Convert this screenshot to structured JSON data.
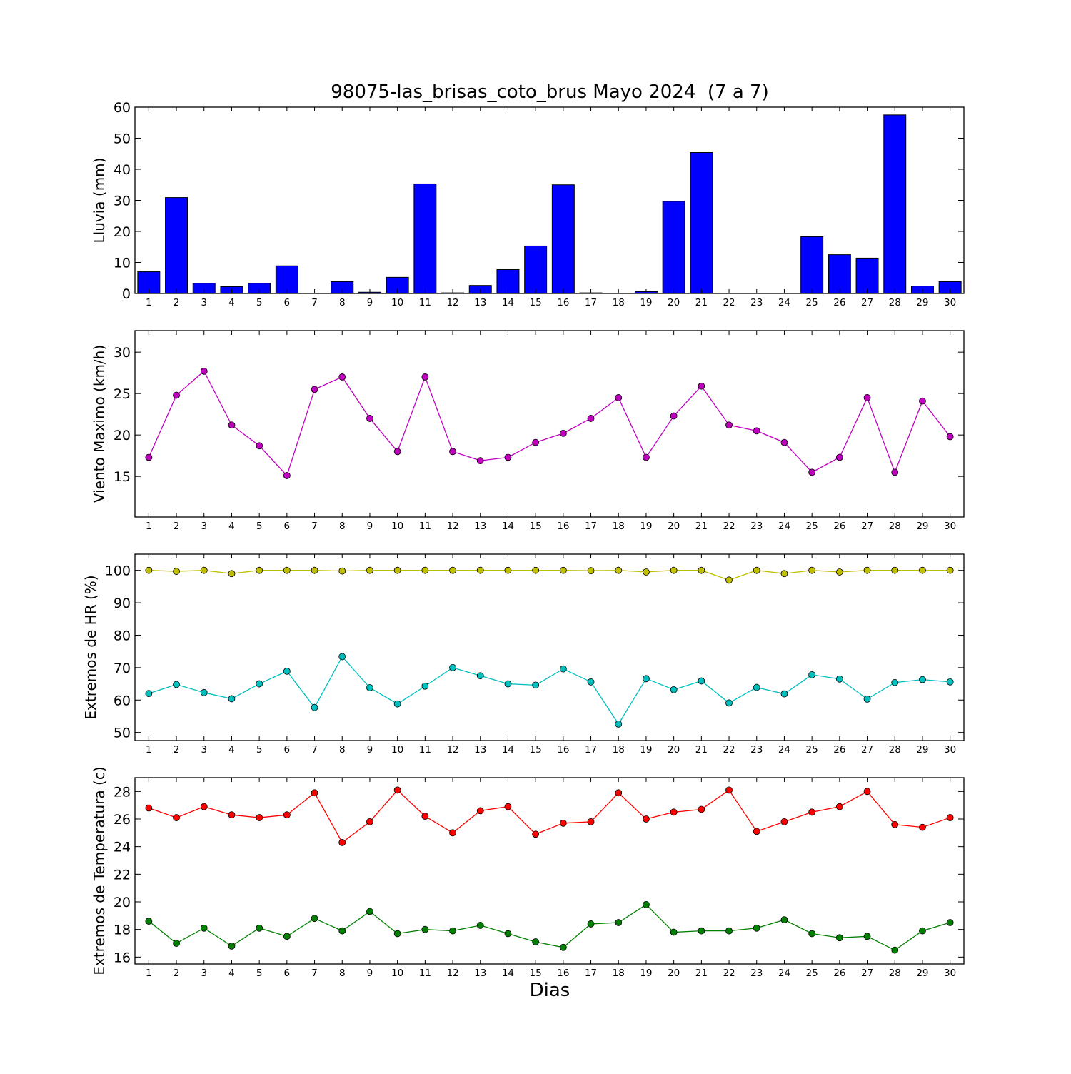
{
  "chart_data": {
    "title": "98075-las_brisas_coto_brus Mayo 2024  (7 a 7)",
    "xlabel": "Dias",
    "x": [
      1,
      2,
      3,
      4,
      5,
      6,
      7,
      8,
      9,
      10,
      11,
      12,
      13,
      14,
      15,
      16,
      17,
      18,
      19,
      20,
      21,
      22,
      23,
      24,
      25,
      26,
      27,
      28,
      29,
      30
    ],
    "panels": [
      {
        "type": "bar",
        "ylabel": "Lluvia (mm)",
        "ylim": [
          0,
          60
        ],
        "yticks": [
          0,
          10,
          20,
          30,
          40,
          50,
          60
        ],
        "series": [
          {
            "color": "#0000ff",
            "values": [
              7.0,
              30.9,
              3.3,
              2.2,
              3.3,
              8.9,
              0.0,
              3.8,
              0.4,
              5.2,
              35.3,
              0.2,
              2.6,
              7.7,
              15.3,
              35.0,
              0.2,
              0.0,
              0.6,
              29.7,
              45.4,
              0.0,
              0.0,
              0.0,
              18.3,
              12.5,
              11.4,
              57.5,
              2.4,
              3.8
            ]
          }
        ]
      },
      {
        "type": "line",
        "ylabel": "Viento Maximo (km/h)",
        "ylim": [
          10.1,
          32.6
        ],
        "yticks": [
          15,
          20,
          25,
          30
        ],
        "series": [
          {
            "color": "#bf00bf",
            "values": [
              17.3,
              24.8,
              27.7,
              21.2,
              18.7,
              15.1,
              25.5,
              27.0,
              22.0,
              18.0,
              27.0,
              18.0,
              16.9,
              17.3,
              19.1,
              20.2,
              22.0,
              24.5,
              17.3,
              22.3,
              25.9,
              21.2,
              20.5,
              19.1,
              15.5,
              17.3,
              24.5,
              15.5,
              24.1,
              19.8
            ]
          }
        ]
      },
      {
        "type": "line",
        "ylabel": "Extremos de HR (%)",
        "ylim": [
          47.5,
          105
        ],
        "yticks": [
          50,
          60,
          70,
          80,
          90,
          100
        ],
        "series": [
          {
            "color": "#bfbf00",
            "values": [
              100.0,
              99.7,
              100.0,
              99.0,
              100.0,
              100.0,
              100.0,
              99.8,
              100.0,
              100.0,
              100.0,
              100.0,
              100.0,
              100.0,
              100.0,
              100.0,
              99.9,
              100.0,
              99.5,
              100.0,
              100.0,
              97.0,
              100.0,
              99.0,
              100.0,
              99.5,
              100.0,
              100.0,
              100.0,
              100.0
            ]
          },
          {
            "color": "#00bfbf",
            "values": [
              62.0,
              64.8,
              62.3,
              60.4,
              65.0,
              68.9,
              57.7,
              73.4,
              63.8,
              58.8,
              64.3,
              70.0,
              67.5,
              65.0,
              64.6,
              69.6,
              65.6,
              52.6,
              66.6,
              63.2,
              65.9,
              59.1,
              63.9,
              61.9,
              67.8,
              66.5,
              60.3,
              65.4,
              66.3,
              65.6
            ]
          }
        ]
      },
      {
        "type": "line",
        "ylabel": "Extremos de Temperatura (c)",
        "ylim": [
          15.5,
          29.0
        ],
        "yticks": [
          16,
          18,
          20,
          22,
          24,
          26,
          28
        ],
        "series": [
          {
            "color": "#ff0000",
            "values": [
              26.8,
              26.1,
              26.9,
              26.3,
              26.1,
              26.3,
              27.9,
              24.3,
              25.8,
              28.1,
              26.2,
              25.0,
              26.6,
              26.9,
              24.9,
              25.7,
              25.8,
              27.9,
              26.0,
              26.5,
              26.7,
              28.1,
              25.1,
              25.8,
              26.5,
              26.9,
              28.0,
              25.6,
              25.4,
              26.1
            ]
          },
          {
            "color": "#008000",
            "values": [
              18.6,
              17.0,
              18.1,
              16.8,
              18.1,
              17.5,
              18.8,
              17.9,
              19.3,
              17.7,
              18.0,
              17.9,
              18.3,
              17.7,
              17.1,
              16.7,
              18.4,
              18.5,
              19.8,
              17.8,
              17.9,
              17.9,
              18.1,
              18.7,
              17.7,
              17.4,
              17.5,
              16.5,
              17.9,
              18.5
            ]
          }
        ]
      }
    ]
  }
}
